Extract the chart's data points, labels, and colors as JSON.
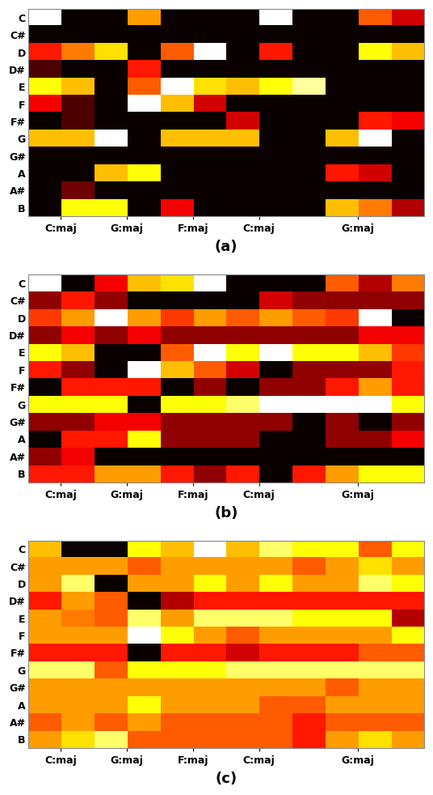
{
  "notes": [
    "C",
    "C#",
    "D",
    "D#",
    "E",
    "F",
    "F#",
    "G",
    "G#",
    "A",
    "A#",
    "B"
  ],
  "xtick_labels": [
    "C:maj",
    "G:maj",
    "F:maj",
    "C:maj",
    "G:maj"
  ],
  "xtick_positions": [
    0.5,
    2.5,
    4.5,
    6.5,
    9.5
  ],
  "label_a": "(a)",
  "label_b": "(b)",
  "label_c": "(c)",
  "data_a": [
    [
      1.0,
      0.0,
      0.0,
      0.6,
      0.0,
      0.0,
      0.0,
      1.0,
      0.0,
      0.0,
      0.5,
      0.3
    ],
    [
      0.0,
      0.0,
      0.0,
      0.0,
      0.0,
      0.0,
      0.0,
      0.0,
      0.0,
      0.0,
      0.0,
      0.0
    ],
    [
      0.4,
      0.55,
      0.7,
      0.0,
      0.5,
      1.0,
      0.0,
      0.4,
      0.0,
      0.0,
      0.75,
      0.65
    ],
    [
      0.1,
      0.0,
      0.0,
      0.4,
      0.0,
      0.0,
      0.0,
      0.0,
      0.0,
      0.0,
      0.0,
      0.0
    ],
    [
      0.75,
      0.65,
      0.0,
      0.5,
      1.0,
      0.7,
      0.65,
      0.75,
      0.9,
      0.0,
      0.0,
      0.0
    ],
    [
      0.35,
      0.1,
      0.0,
      1.0,
      0.65,
      0.3,
      0.0,
      0.0,
      0.0,
      0.0,
      0.0,
      0.0
    ],
    [
      0.0,
      0.1,
      0.0,
      0.0,
      0.0,
      0.0,
      0.3,
      0.0,
      0.0,
      0.0,
      0.4,
      0.35
    ],
    [
      0.65,
      0.65,
      1.0,
      0.0,
      0.65,
      0.65,
      0.65,
      0.0,
      0.0,
      0.65,
      1.0,
      0.0
    ],
    [
      0.0,
      0.0,
      0.0,
      0.0,
      0.0,
      0.0,
      0.0,
      0.0,
      0.0,
      0.0,
      0.0,
      0.0
    ],
    [
      0.0,
      0.0,
      0.65,
      0.75,
      0.0,
      0.0,
      0.0,
      0.0,
      0.0,
      0.4,
      0.3,
      0.0
    ],
    [
      0.0,
      0.15,
      0.0,
      0.0,
      0.0,
      0.0,
      0.0,
      0.0,
      0.0,
      0.0,
      0.0,
      0.0
    ],
    [
      0.0,
      0.75,
      0.75,
      0.0,
      0.35,
      0.0,
      0.0,
      0.0,
      0.0,
      0.65,
      0.55,
      0.25
    ]
  ],
  "data_b": [
    [
      1.0,
      0.0,
      0.35,
      0.65,
      0.7,
      1.0,
      0.0,
      0.0,
      0.0,
      0.5,
      0.25,
      0.55
    ],
    [
      0.2,
      0.4,
      0.2,
      0.0,
      0.0,
      0.0,
      0.0,
      0.3,
      0.2,
      0.2,
      0.2,
      0.2
    ],
    [
      0.45,
      0.6,
      1.0,
      0.6,
      0.45,
      0.6,
      0.5,
      0.6,
      0.5,
      0.45,
      1.0,
      0.0
    ],
    [
      0.2,
      0.35,
      0.2,
      0.35,
      0.2,
      0.2,
      0.2,
      0.2,
      0.2,
      0.2,
      0.35,
      0.35
    ],
    [
      0.75,
      0.65,
      0.0,
      0.0,
      0.5,
      1.0,
      0.75,
      1.0,
      0.75,
      0.75,
      0.65,
      0.45
    ],
    [
      0.4,
      0.2,
      0.0,
      1.0,
      0.65,
      0.5,
      0.3,
      0.0,
      0.2,
      0.2,
      0.2,
      0.4
    ],
    [
      0.0,
      0.4,
      0.4,
      0.4,
      0.0,
      0.2,
      0.0,
      0.2,
      0.2,
      0.4,
      0.6,
      0.4
    ],
    [
      0.75,
      0.75,
      0.75,
      0.0,
      0.75,
      0.75,
      0.85,
      1.0,
      1.0,
      1.0,
      1.0,
      0.75
    ],
    [
      0.2,
      0.2,
      0.35,
      0.35,
      0.2,
      0.2,
      0.2,
      0.2,
      0.0,
      0.2,
      0.0,
      0.2
    ],
    [
      0.0,
      0.4,
      0.4,
      0.75,
      0.2,
      0.2,
      0.2,
      0.0,
      0.0,
      0.2,
      0.2,
      0.35
    ],
    [
      0.2,
      0.35,
      0.0,
      0.0,
      0.0,
      0.0,
      0.0,
      0.0,
      0.0,
      0.0,
      0.0,
      0.0
    ],
    [
      0.4,
      0.4,
      0.6,
      0.6,
      0.4,
      0.2,
      0.4,
      0.0,
      0.4,
      0.6,
      0.75,
      0.75
    ]
  ],
  "data_c": [
    [
      0.65,
      0.0,
      0.0,
      0.75,
      0.65,
      1.0,
      0.65,
      0.85,
      0.75,
      0.75,
      0.5,
      0.75
    ],
    [
      0.6,
      0.6,
      0.6,
      0.5,
      0.6,
      0.6,
      0.6,
      0.6,
      0.5,
      0.6,
      0.7,
      0.6
    ],
    [
      0.6,
      0.85,
      0.0,
      0.6,
      0.6,
      0.75,
      0.6,
      0.75,
      0.6,
      0.6,
      0.85,
      0.75
    ],
    [
      0.4,
      0.6,
      0.5,
      0.0,
      0.25,
      0.4,
      0.4,
      0.4,
      0.4,
      0.4,
      0.4,
      0.4
    ],
    [
      0.6,
      0.55,
      0.5,
      0.85,
      0.6,
      0.85,
      0.85,
      0.85,
      0.75,
      0.75,
      0.75,
      0.25
    ],
    [
      0.6,
      0.6,
      0.6,
      1.0,
      0.75,
      0.6,
      0.5,
      0.6,
      0.6,
      0.6,
      0.6,
      0.75
    ],
    [
      0.4,
      0.4,
      0.4,
      0.0,
      0.4,
      0.4,
      0.3,
      0.4,
      0.4,
      0.4,
      0.5,
      0.5
    ],
    [
      0.85,
      0.85,
      0.5,
      0.75,
      0.75,
      0.75,
      0.85,
      0.85,
      0.85,
      0.85,
      0.85,
      0.85
    ],
    [
      0.6,
      0.6,
      0.6,
      0.6,
      0.6,
      0.6,
      0.6,
      0.6,
      0.6,
      0.5,
      0.6,
      0.6
    ],
    [
      0.6,
      0.6,
      0.6,
      0.75,
      0.6,
      0.6,
      0.6,
      0.5,
      0.5,
      0.6,
      0.6,
      0.6
    ],
    [
      0.5,
      0.6,
      0.5,
      0.6,
      0.5,
      0.5,
      0.5,
      0.5,
      0.4,
      0.5,
      0.5,
      0.5
    ],
    [
      0.6,
      0.7,
      0.85,
      0.5,
      0.5,
      0.5,
      0.5,
      0.5,
      0.4,
      0.6,
      0.7,
      0.6
    ]
  ]
}
